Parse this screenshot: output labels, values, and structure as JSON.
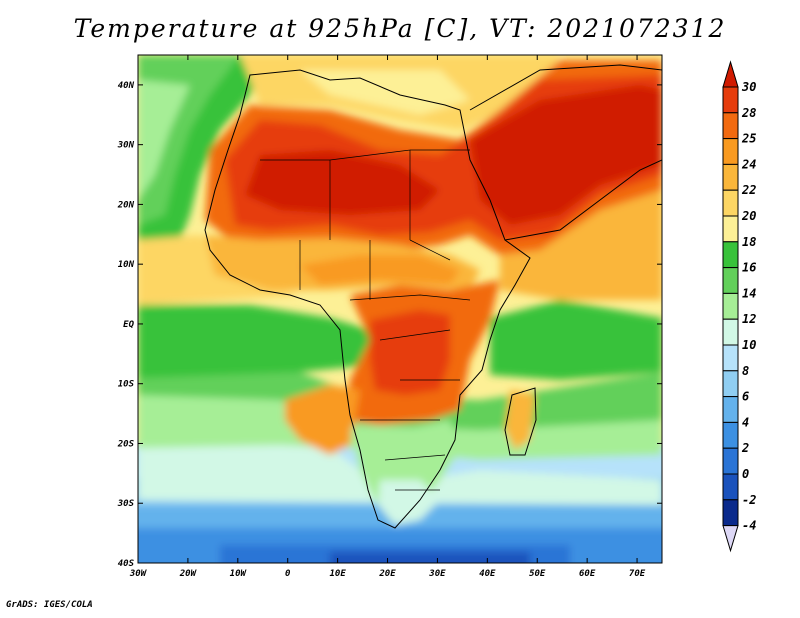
{
  "title": "Temperature at 925hPa [C], VT: 2021072312",
  "footer": "GrADS: IGES/COLA",
  "map": {
    "region": "Africa",
    "lon_range": [
      -30,
      75
    ],
    "lat_range": [
      -40,
      45
    ],
    "lon_ticks": [
      "30W",
      "20W",
      "10W",
      "0",
      "10E",
      "20E",
      "30E",
      "40E",
      "50E",
      "60E",
      "70E"
    ],
    "lat_ticks": [
      "40N",
      "30N",
      "20N",
      "10N",
      "EQ",
      "10S",
      "20S",
      "30S",
      "40S"
    ]
  },
  "colorbar": {
    "labels": [
      "30",
      "28",
      "25",
      "24",
      "22",
      "20",
      "18",
      "16",
      "14",
      "12",
      "10",
      "8",
      "6",
      "4",
      "2",
      "0",
      "-2",
      "-4"
    ],
    "colors": {
      "gt30": "#d01a00",
      "c30": "#e63c0c",
      "c28": "#f26a10",
      "c25": "#f99a20",
      "c24": "#fab63a",
      "c22": "#fdd664",
      "c20": "#fdf096",
      "c18": "#38c23a",
      "c16": "#62d05a",
      "c14": "#a6ee96",
      "c12": "#d2f8e6",
      "c10": "#b6e2fa",
      "c8": "#90cef2",
      "c6": "#64b2ec",
      "c4": "#3c90e2",
      "c2": "#2a74d6",
      "c0": "#1a52bc",
      "cm2": "#0a2a8c",
      "lt_m4": "#ddd8f6"
    }
  }
}
